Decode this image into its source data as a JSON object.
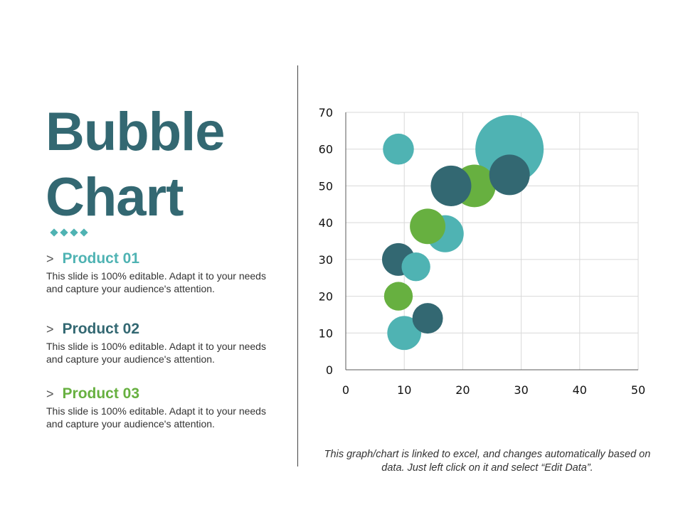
{
  "title": {
    "line1": "Bubble",
    "line2": "Chart"
  },
  "colors": {
    "title": "#336872",
    "p1": "#4fb3b3",
    "p2": "#336872",
    "p3": "#67b040"
  },
  "products": [
    {
      "chevron": ">",
      "name": "Product 01",
      "desc": "This slide is 100% editable. Adapt it to your needs and capture your audience's attention."
    },
    {
      "chevron": ">",
      "name": "Product 02",
      "desc": "This slide is 100% editable. Adapt it to your needs and capture your audience's attention."
    },
    {
      "chevron": ">",
      "name": "Product 03",
      "desc": "This slide is 100% editable. Adapt it to your needs and capture your audience's attention."
    }
  ],
  "footer_note": "This graph/chart is linked to excel, and changes automatically based on data. Just left click on it and select “Edit Data”.",
  "chart_data": {
    "type": "scatter",
    "subtype": "bubble",
    "xlim": [
      0,
      50
    ],
    "ylim": [
      0,
      70
    ],
    "xticks": [
      0,
      10,
      20,
      30,
      40,
      50
    ],
    "yticks": [
      0,
      10,
      20,
      30,
      40,
      50,
      60,
      70
    ],
    "grid": true,
    "series": [
      {
        "name": "Product 01",
        "color": "#4fb3b3",
        "points": [
          {
            "x": 9,
            "y": 60,
            "size": 3.5
          },
          {
            "x": 12,
            "y": 28,
            "size": 3
          },
          {
            "x": 17,
            "y": 37,
            "size": 5
          },
          {
            "x": 10,
            "y": 10,
            "size": 4.2
          },
          {
            "x": 28,
            "y": 60,
            "size": 17
          }
        ]
      },
      {
        "name": "Product 02",
        "color": "#336872",
        "points": [
          {
            "x": 9,
            "y": 30,
            "size": 3.9
          },
          {
            "x": 14,
            "y": 14,
            "size": 3.4
          },
          {
            "x": 18,
            "y": 50,
            "size": 6
          },
          {
            "x": 28,
            "y": 53,
            "size": 6
          }
        ]
      },
      {
        "name": "Product 03",
        "color": "#67b040",
        "points": [
          {
            "x": 9,
            "y": 20,
            "size": 3
          },
          {
            "x": 14,
            "y": 39,
            "size": 4.6
          },
          {
            "x": 22,
            "y": 50,
            "size": 6.6
          }
        ]
      }
    ]
  }
}
